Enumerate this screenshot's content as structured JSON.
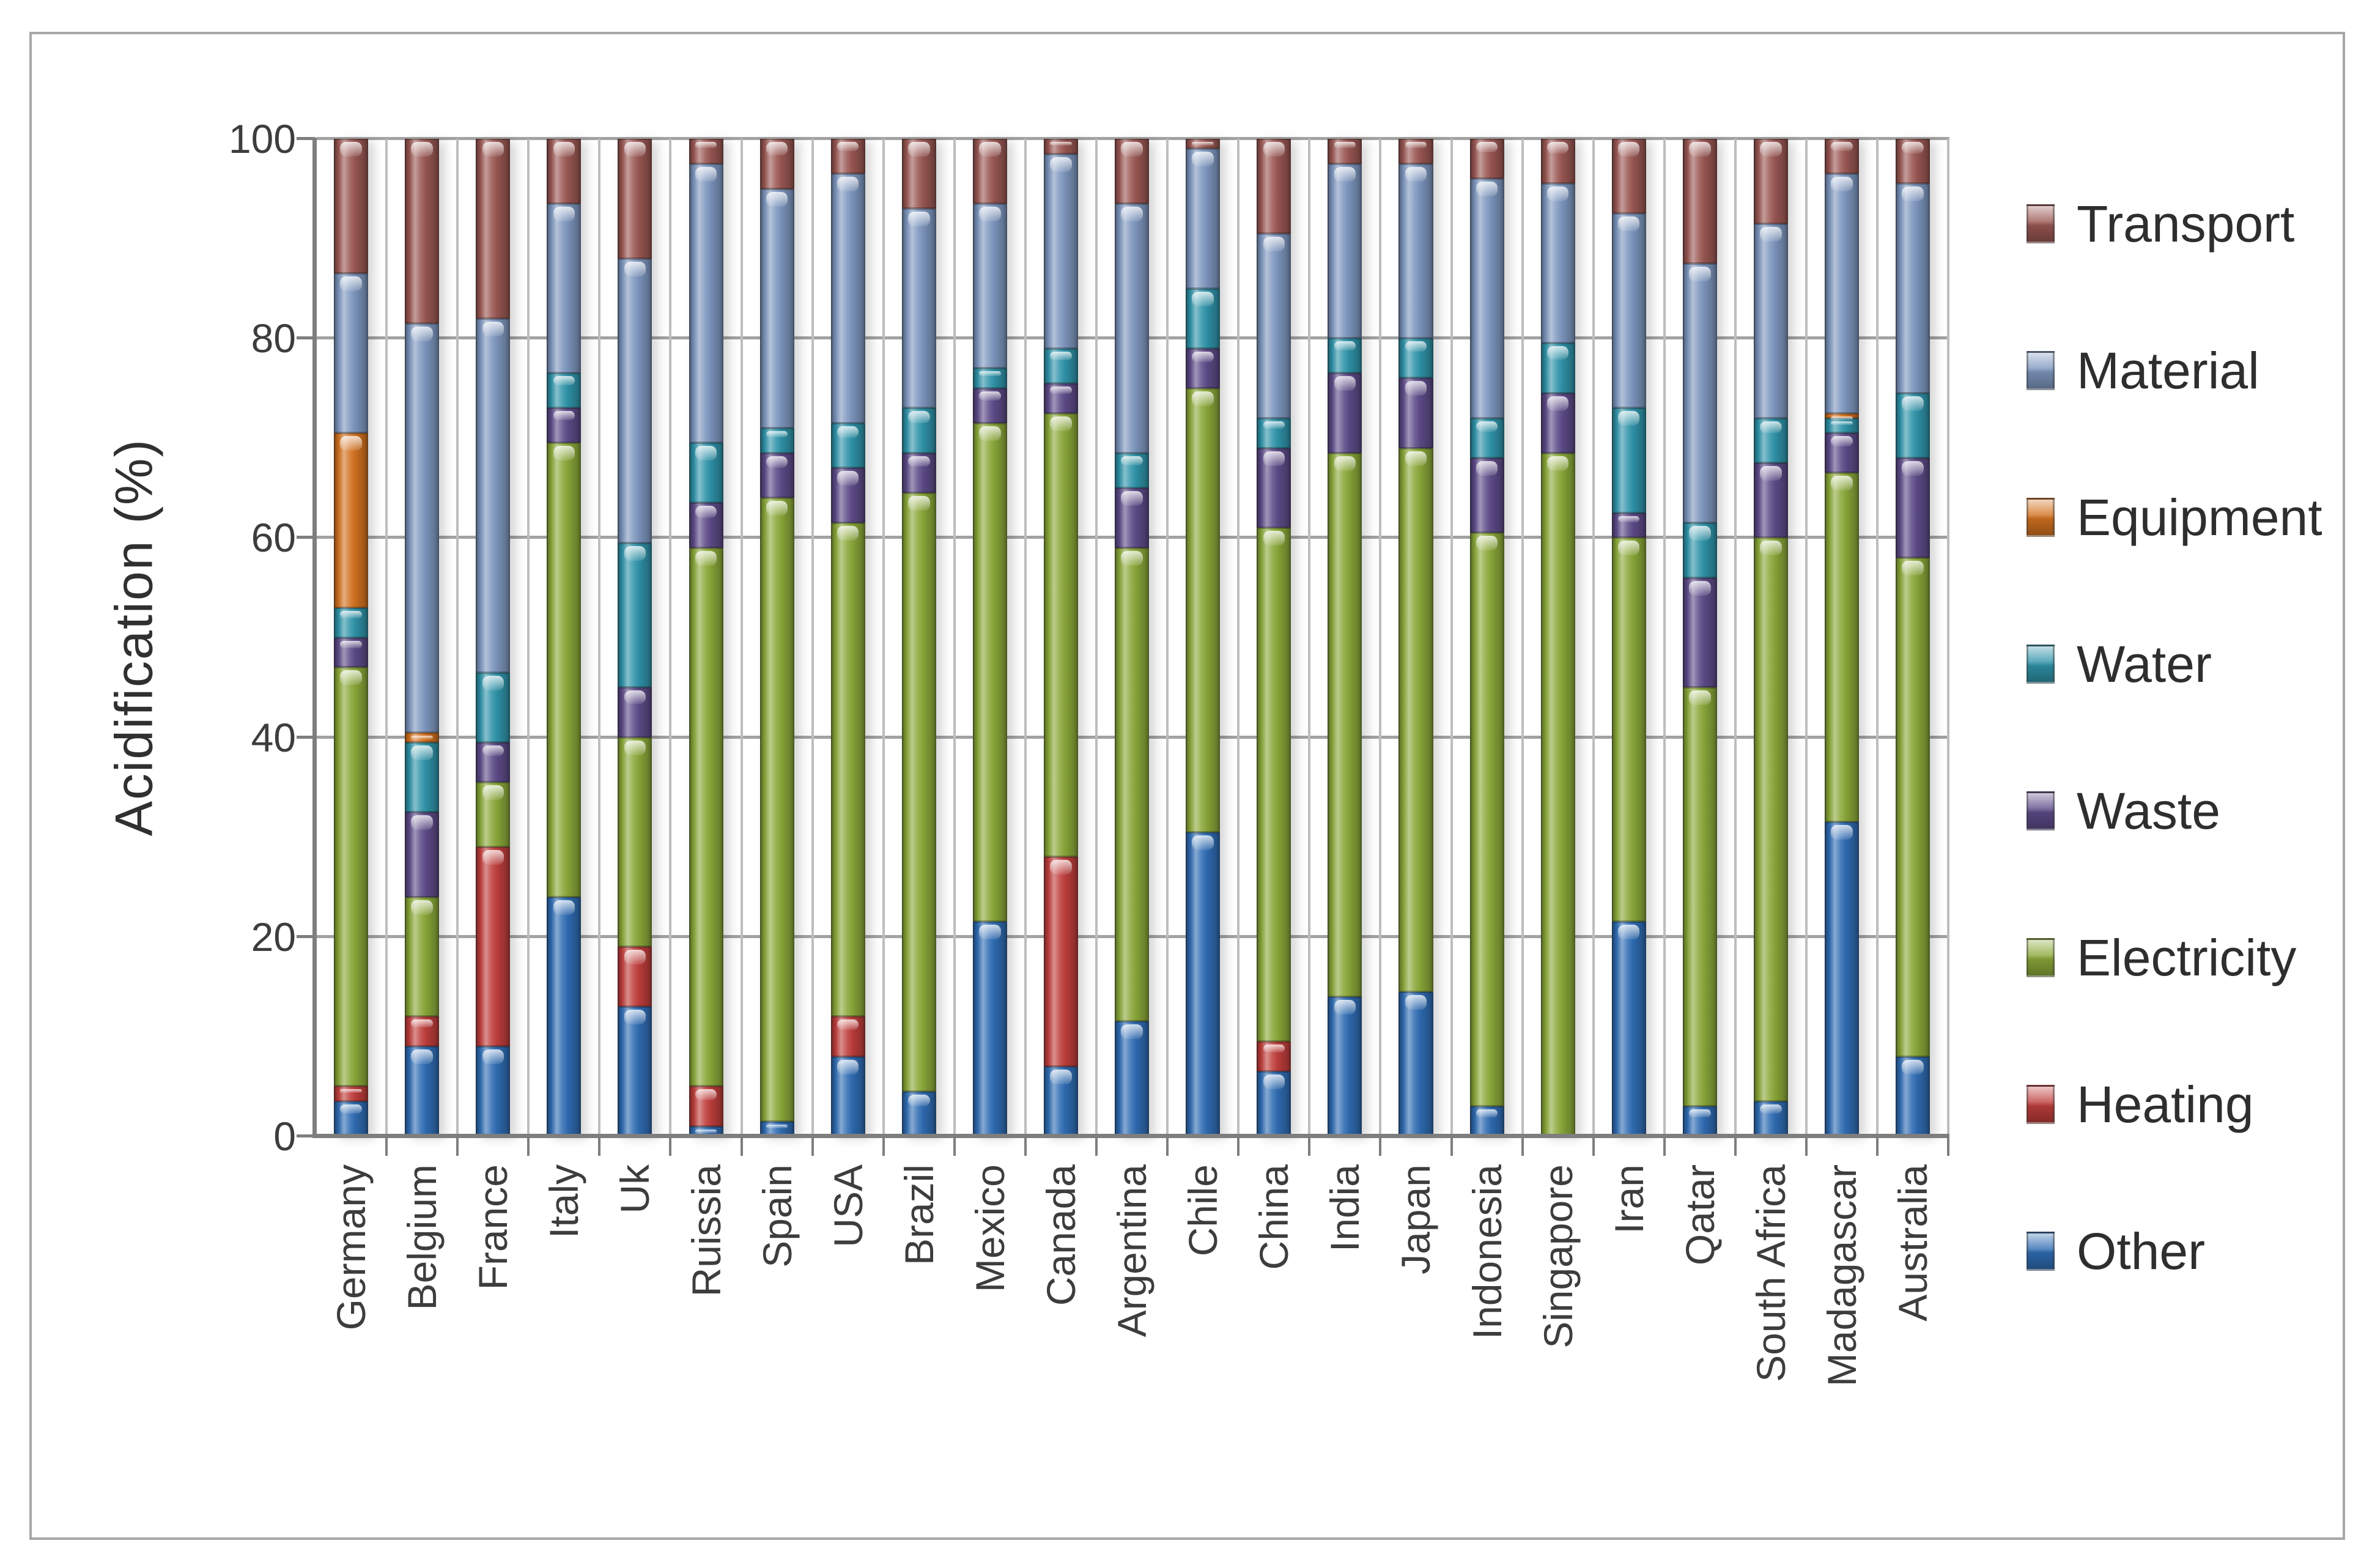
{
  "chart_data": {
    "type": "bar",
    "stacked": true,
    "percent_stacked": true,
    "title": "",
    "xlabel": "",
    "ylabel": "Acidification (%)",
    "ylim": [
      0,
      100
    ],
    "yticks": [
      0,
      20,
      40,
      60,
      80,
      100
    ],
    "grid": "horizontal and vertical category separators",
    "legend_position": "right",
    "legend_order": [
      "Transport",
      "Material",
      "Equipment",
      "Water",
      "Waste",
      "Electricity",
      "Heating",
      "Other"
    ],
    "categories": [
      "Germany",
      "Belgium",
      "France",
      "Italy",
      "Uk",
      "Ruissia",
      "Spain",
      "USA",
      "Brazil",
      "Mexico",
      "Canada",
      "Argentina",
      "Chile",
      "China",
      "India",
      "Japan",
      "Indonesia",
      "Singapore",
      "Iran",
      "Qatar",
      "South Africa",
      "Madagascar",
      "Australia"
    ],
    "series": [
      {
        "name": "Other",
        "color": "#2f6cb3",
        "values": [
          3.5,
          9,
          9,
          24,
          13,
          1,
          1.5,
          8,
          4.5,
          21.5,
          7,
          11.5,
          30.5,
          6.5,
          14,
          14.5,
          3,
          0,
          21.5,
          3,
          3.5,
          31.5,
          8
        ]
      },
      {
        "name": "Heating",
        "color": "#bf3e3c",
        "values": [
          1.5,
          3,
          20,
          0,
          6,
          4,
          0,
          4,
          0,
          0,
          21,
          0,
          0,
          3,
          0,
          0,
          0,
          0,
          0,
          0,
          0,
          0,
          0
        ]
      },
      {
        "name": "Electricity",
        "color": "#8aa839",
        "values": [
          42,
          12,
          6.5,
          45.5,
          21,
          54,
          62.5,
          49.5,
          60,
          50,
          44.5,
          47.5,
          44.5,
          51.5,
          54.5,
          54.5,
          57.5,
          68.5,
          38.5,
          42,
          56.5,
          35,
          50
        ]
      },
      {
        "name": "Waste",
        "color": "#5d4b88",
        "values": [
          3,
          8.5,
          4,
          3.5,
          5,
          4.5,
          4.5,
          5.5,
          4,
          3.5,
          3,
          6,
          4,
          8,
          8,
          7,
          7.5,
          6,
          2.5,
          11,
          7.5,
          4,
          10
        ]
      },
      {
        "name": "Water",
        "color": "#2f93a9",
        "values": [
          3,
          7,
          7,
          3.5,
          14.5,
          6,
          2.5,
          4.5,
          4.5,
          2,
          3.5,
          3.5,
          6,
          3,
          3.5,
          4,
          4,
          5,
          10.5,
          5.5,
          4.5,
          1.5,
          6.5
        ]
      },
      {
        "name": "Equipment",
        "color": "#d2711f",
        "values": [
          17.5,
          1,
          0,
          0,
          0,
          0,
          0,
          0,
          0,
          0,
          0,
          0,
          0,
          0,
          0,
          0,
          0,
          0,
          0,
          0,
          0,
          0.5,
          0
        ]
      },
      {
        "name": "Material",
        "color": "#7d96be",
        "values": [
          16,
          41,
          35.5,
          17,
          28.5,
          28,
          24,
          25,
          20,
          16.5,
          19.5,
          25,
          14,
          18.5,
          17.5,
          17.5,
          24,
          16,
          19.5,
          26,
          19.5,
          24,
          21
        ]
      },
      {
        "name": "Transport",
        "color": "#9a5753",
        "values": [
          13.5,
          18.5,
          18,
          6.5,
          12,
          2.5,
          5,
          3.5,
          7,
          6.5,
          1.5,
          6.5,
          1,
          9.5,
          2.5,
          2.5,
          4,
          4.5,
          7.5,
          12.5,
          8.5,
          3.5,
          4.5
        ]
      }
    ]
  },
  "axes": {
    "y_title": "Acidification (%)",
    "y_tick_labels": [
      "0",
      "20",
      "40",
      "60",
      "80",
      "100"
    ]
  }
}
